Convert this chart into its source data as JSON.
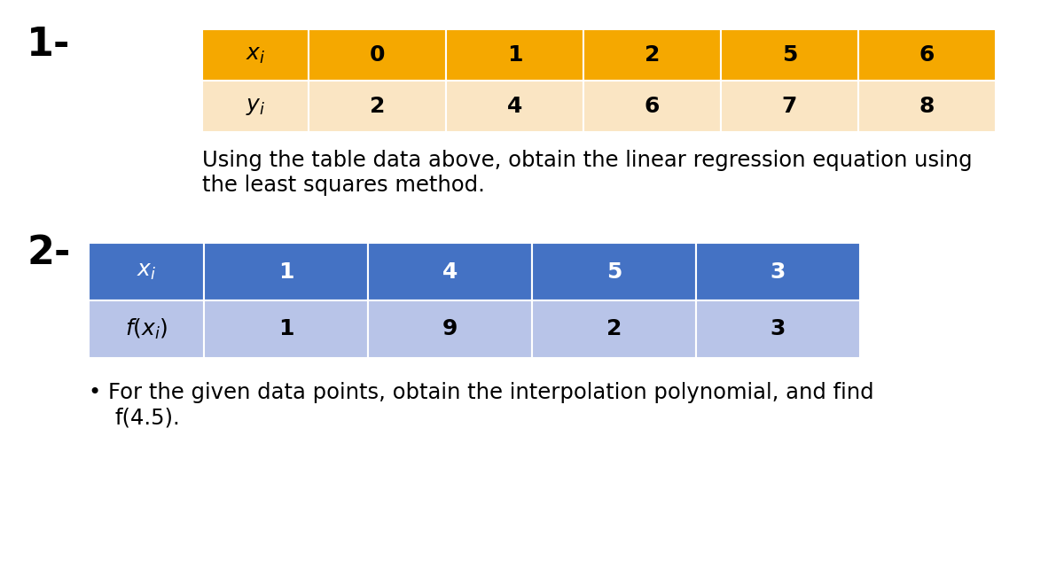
{
  "background_color": "#ffffff",
  "label1": "1-",
  "label2": "2-",
  "table1_header_color": "#F5A800",
  "table1_row_color": "#FAE5C3",
  "table1_header_text_color": "#000000",
  "table1_row_text_color": "#000000",
  "table1_row1_label": "$x_i$",
  "table1_row2_label": "$y_i$",
  "table1_col_values": [
    "0",
    "1",
    "2",
    "5",
    "6"
  ],
  "table1_row_values": [
    "2",
    "4",
    "6",
    "7",
    "8"
  ],
  "text1_line1": "Using the table data above, obtain the linear regression equation using",
  "text1_line2": "the least squares method.",
  "table2_header_color": "#4472C4",
  "table2_row_color": "#B8C4E8",
  "table2_header_text_color": "#ffffff",
  "table2_row_text_color": "#000000",
  "table2_row1_label": "$x_i$",
  "table2_row2_label": "$f(x_i)$",
  "table2_col_values": [
    "1",
    "4",
    "5",
    "3"
  ],
  "table2_row_values": [
    "1",
    "9",
    "2",
    "3"
  ],
  "text2_line1": "• For the given data points, obtain the interpolation polynomial, and find",
  "text2_line2": "  f(4.5).",
  "label_fontsize": 32,
  "table_header_fontsize": 18,
  "table_data_fontsize": 18,
  "text_fontsize": 17.5
}
